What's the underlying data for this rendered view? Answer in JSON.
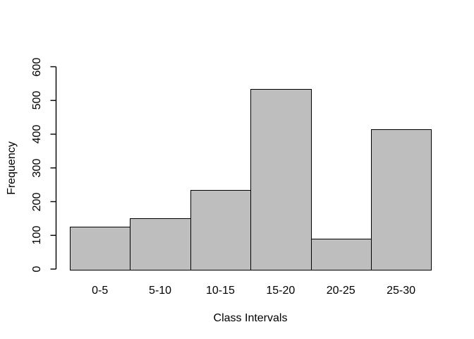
{
  "chart_data": {
    "type": "bar",
    "subtype": "histogram",
    "title": "",
    "xlabel": "Class Intervals",
    "ylabel": "Frequency",
    "categories": [
      "0-5",
      "5-10",
      "10-15",
      "15-20",
      "20-25",
      "25-30"
    ],
    "values": [
      125,
      150,
      235,
      535,
      90,
      415
    ],
    "ylim": [
      0,
      600
    ],
    "yticks": [
      0,
      100,
      200,
      300,
      400,
      500,
      600
    ],
    "ytick_labels": [
      "0",
      "100",
      "200",
      "300",
      "400",
      "500",
      "600"
    ],
    "legend": "none",
    "grid": false,
    "colors": {
      "bar_fill": "#bebebe",
      "bar_border": "#000000",
      "axis": "#000000",
      "text": "#000000",
      "background": "#ffffff"
    }
  }
}
